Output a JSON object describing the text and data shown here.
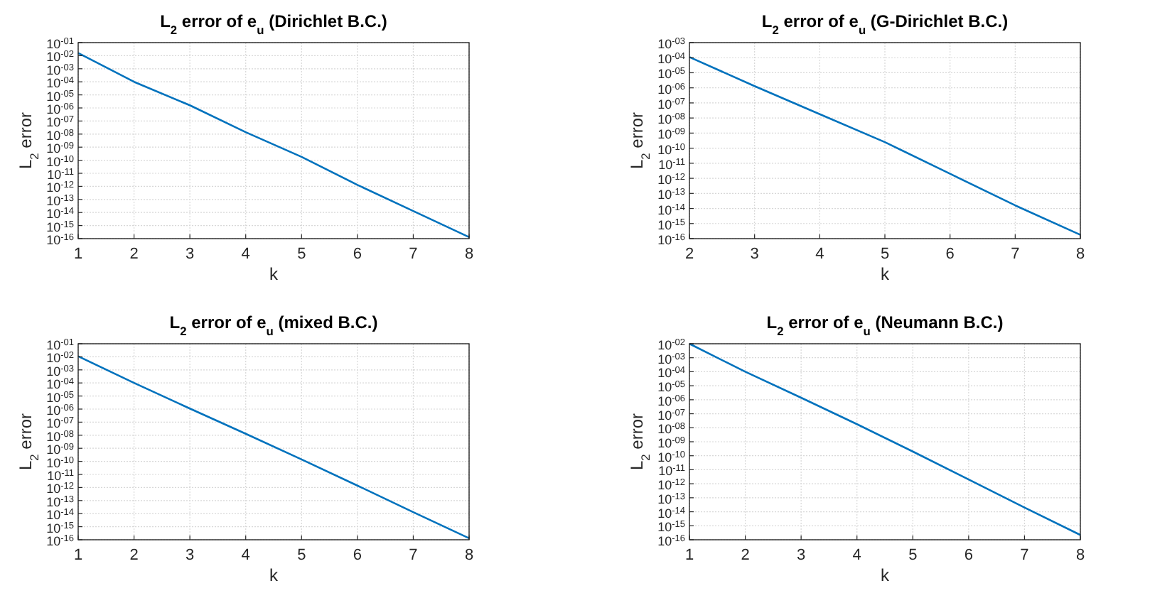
{
  "chart_data": [
    {
      "type": "line",
      "title": "L$_{2}$ error of e$_{u}$ (Dirichlet B.C.)",
      "xlabel": "k",
      "ylabel": "L$_{2}$ error",
      "log": true,
      "grid": true,
      "x": [
        1,
        2,
        3,
        4,
        5,
        6,
        7,
        8
      ],
      "xlim": [
        1,
        8
      ],
      "xticks": [
        1,
        2,
        3,
        4,
        5,
        6,
        7,
        8
      ],
      "ylim": [
        1e-16,
        0.1
      ],
      "yticks": [
        {
          "value": 1e-16,
          "label": "10$^{-16}$"
        },
        {
          "value": 1e-15,
          "label": "10$^{-15}$"
        },
        {
          "value": 1e-14,
          "label": "10$^{-14}$"
        },
        {
          "value": 1e-13,
          "label": "10$^{-13}$"
        },
        {
          "value": 1e-12,
          "label": "10$^{-12}$"
        },
        {
          "value": 1e-11,
          "label": "10$^{-11}$"
        },
        {
          "value": 1e-10,
          "label": "10$^{-10}$"
        },
        {
          "value": 1e-09,
          "label": "10$^{-09}$"
        },
        {
          "value": 1e-08,
          "label": "10$^{-08}$"
        },
        {
          "value": 1e-07,
          "label": "10$^{-07}$"
        },
        {
          "value": 1e-06,
          "label": "10$^{-06}$"
        },
        {
          "value": 1e-05,
          "label": "10$^{-05}$"
        },
        {
          "value": 0.0001,
          "label": "10$^{-04}$"
        },
        {
          "value": 0.001,
          "label": "10$^{-03}$"
        },
        {
          "value": 0.01,
          "label": "10$^{-02}$"
        },
        {
          "value": 0.1,
          "label": "10$^{-01}$"
        }
      ],
      "series": [
        {
          "color": "#0072bd",
          "values": [
            0.016,
            0.0001,
            1.6e-06,
            1.4e-08,
            1.8e-10,
            1.3e-12,
            1.3e-14,
            1.3e-16
          ]
        }
      ]
    },
    {
      "type": "line",
      "title": "L$_{2}$ error of e$_{u}$ (G-Dirichlet B.C.)",
      "xlabel": "k",
      "ylabel": "L$_{2}$ error",
      "log": true,
      "grid": true,
      "x": [
        2,
        3,
        4,
        5,
        6,
        7,
        8
      ],
      "xlim": [
        2,
        8
      ],
      "xticks": [
        2,
        3,
        4,
        5,
        6,
        7,
        8
      ],
      "ylim": [
        1e-16,
        0.001
      ],
      "yticks": [
        {
          "value": 1e-16,
          "label": "10$^{-16}$"
        },
        {
          "value": 1e-15,
          "label": "10$^{-15}$"
        },
        {
          "value": 1e-14,
          "label": "10$^{-14}$"
        },
        {
          "value": 1e-13,
          "label": "10$^{-13}$"
        },
        {
          "value": 1e-12,
          "label": "10$^{-12}$"
        },
        {
          "value": 1e-11,
          "label": "10$^{-11}$"
        },
        {
          "value": 1e-10,
          "label": "10$^{-10}$"
        },
        {
          "value": 1e-09,
          "label": "10$^{-09}$"
        },
        {
          "value": 1e-08,
          "label": "10$^{-08}$"
        },
        {
          "value": 1e-07,
          "label": "10$^{-07}$"
        },
        {
          "value": 1e-06,
          "label": "10$^{-06}$"
        },
        {
          "value": 1e-05,
          "label": "10$^{-05}$"
        },
        {
          "value": 0.0001,
          "label": "10$^{-04}$"
        },
        {
          "value": 0.001,
          "label": "10$^{-03}$"
        }
      ],
      "series": [
        {
          "color": "#0072bd",
          "values": [
            0.00011,
            1.3e-06,
            1.8e-08,
            2.5e-10,
            2e-12,
            1.6e-14,
            1.8e-16
          ]
        }
      ]
    },
    {
      "type": "line",
      "title": "L$_{2}$ error of e$_{u}$ (mixed B.C.)",
      "xlabel": "k",
      "ylabel": "L$_{2}$ error",
      "log": true,
      "grid": true,
      "x": [
        1,
        2,
        3,
        4,
        5,
        6,
        7,
        8
      ],
      "xlim": [
        1,
        8
      ],
      "xticks": [
        1,
        2,
        3,
        4,
        5,
        6,
        7,
        8
      ],
      "ylim": [
        1e-16,
        0.1
      ],
      "yticks": [
        {
          "value": 1e-16,
          "label": "10$^{-16}$"
        },
        {
          "value": 1e-15,
          "label": "10$^{-15}$"
        },
        {
          "value": 1e-14,
          "label": "10$^{-14}$"
        },
        {
          "value": 1e-13,
          "label": "10$^{-13}$"
        },
        {
          "value": 1e-12,
          "label": "10$^{-12}$"
        },
        {
          "value": 1e-11,
          "label": "10$^{-11}$"
        },
        {
          "value": 1e-10,
          "label": "10$^{-10}$"
        },
        {
          "value": 1e-09,
          "label": "10$^{-09}$"
        },
        {
          "value": 1e-08,
          "label": "10$^{-08}$"
        },
        {
          "value": 1e-07,
          "label": "10$^{-07}$"
        },
        {
          "value": 1e-06,
          "label": "10$^{-06}$"
        },
        {
          "value": 1e-05,
          "label": "10$^{-05}$"
        },
        {
          "value": 0.0001,
          "label": "10$^{-04}$"
        },
        {
          "value": 0.001,
          "label": "10$^{-03}$"
        },
        {
          "value": 0.01,
          "label": "10$^{-02}$"
        },
        {
          "value": 0.1,
          "label": "10$^{-01}$"
        }
      ],
      "series": [
        {
          "color": "#0072bd",
          "values": [
            0.011,
            0.0001,
            1.1e-06,
            1.3e-08,
            1.4e-10,
            1.4e-12,
            1.3e-14,
            1.3e-16
          ]
        }
      ]
    },
    {
      "type": "line",
      "title": "L$_{2}$ error of e$_{u}$ (Neumann B.C.)",
      "xlabel": "k",
      "ylabel": "L$_{2}$ error",
      "log": true,
      "grid": true,
      "x": [
        1,
        2,
        3,
        4,
        5,
        6,
        7,
        8
      ],
      "xlim": [
        1,
        8
      ],
      "xticks": [
        1,
        2,
        3,
        4,
        5,
        6,
        7,
        8
      ],
      "ylim": [
        1e-16,
        0.01
      ],
      "yticks": [
        {
          "value": 1e-16,
          "label": "10$^{-16}$"
        },
        {
          "value": 1e-15,
          "label": "10$^{-15}$"
        },
        {
          "value": 1e-14,
          "label": "10$^{-14}$"
        },
        {
          "value": 1e-13,
          "label": "10$^{-13}$"
        },
        {
          "value": 1e-12,
          "label": "10$^{-12}$"
        },
        {
          "value": 1e-11,
          "label": "10$^{-11}$"
        },
        {
          "value": 1e-10,
          "label": "10$^{-10}$"
        },
        {
          "value": 1e-09,
          "label": "10$^{-09}$"
        },
        {
          "value": 1e-08,
          "label": "10$^{-08}$"
        },
        {
          "value": 1e-07,
          "label": "10$^{-07}$"
        },
        {
          "value": 1e-06,
          "label": "10$^{-06}$"
        },
        {
          "value": 1e-05,
          "label": "10$^{-05}$"
        },
        {
          "value": 0.0001,
          "label": "10$^{-04}$"
        },
        {
          "value": 0.001,
          "label": "10$^{-03}$"
        },
        {
          "value": 0.01,
          "label": "10$^{-02}$"
        }
      ],
      "series": [
        {
          "color": "#0072bd",
          "values": [
            0.01,
            0.0001,
            1.4e-06,
            1.8e-08,
            2e-10,
            2e-12,
            2e-14,
            2.2e-16
          ]
        }
      ]
    }
  ]
}
